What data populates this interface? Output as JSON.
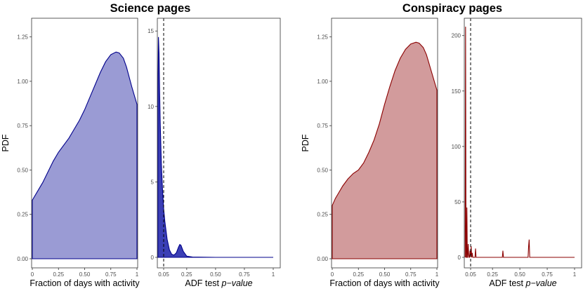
{
  "figure": {
    "left_title": "Science pages",
    "right_title": "Conspiracy pages"
  },
  "chart_data": [
    {
      "id": "sci-activity",
      "type": "area",
      "group": "Science pages",
      "xlabel": "Fraction of days with activity",
      "ylabel": "PDF",
      "xlim": [
        0,
        1
      ],
      "ylim": [
        0,
        1.3
      ],
      "xticks": [
        0,
        0.25,
        0.5,
        0.75,
        1
      ],
      "xticklabels": [
        "0",
        "0.25",
        "0.50",
        "0.75",
        "1"
      ],
      "yticks": [
        0,
        0.25,
        0.5,
        0.75,
        1.0,
        1.25
      ],
      "yticklabels": [
        "0.00",
        "0.25",
        "0.50",
        "0.75",
        "1.00",
        "1.25"
      ],
      "fill": "#9a9bd4",
      "stroke": "#00008b",
      "x": [
        0,
        0.05,
        0.1,
        0.15,
        0.2,
        0.25,
        0.3,
        0.35,
        0.4,
        0.45,
        0.5,
        0.55,
        0.6,
        0.65,
        0.7,
        0.75,
        0.8,
        0.83,
        0.87,
        0.9,
        0.95,
        1
      ],
      "y": [
        0.33,
        0.38,
        0.43,
        0.49,
        0.55,
        0.6,
        0.64,
        0.68,
        0.73,
        0.78,
        0.84,
        0.91,
        0.98,
        1.05,
        1.11,
        1.15,
        1.165,
        1.16,
        1.13,
        1.08,
        0.97,
        0.87
      ]
    },
    {
      "id": "sci-adf",
      "type": "area",
      "group": "Science pages",
      "xlabel": "ADF test",
      "xlabel_italic": "p−value",
      "xlim": [
        0.05,
        1
      ],
      "ylim": [
        0,
        15.8
      ],
      "xticks": [
        0.05,
        0.25,
        0.5,
        0.75,
        1
      ],
      "xticklabels": [
        "0.05",
        "0.25",
        "0.50",
        "0.75",
        "1"
      ],
      "yticks": [
        0,
        5,
        10,
        15
      ],
      "yticklabels": [
        "0",
        "5",
        "10",
        "15"
      ],
      "vline": 0.05,
      "fill": "#3b3fb5",
      "stroke": "#00008b",
      "x": [
        0.0,
        0.005,
        0.01,
        0.015,
        0.02,
        0.03,
        0.04,
        0.05,
        0.06,
        0.08,
        0.1,
        0.12,
        0.14,
        0.16,
        0.17,
        0.18,
        0.19,
        0.2,
        0.22,
        0.25,
        0.3,
        0.5,
        0.75,
        1.0
      ],
      "y": [
        11,
        14.6,
        13.5,
        11,
        9,
        6.2,
        4.5,
        3.2,
        2.4,
        1.2,
        0.5,
        0.2,
        0.15,
        0.3,
        0.5,
        0.7,
        0.85,
        0.8,
        0.4,
        0.08,
        0.02,
        0,
        0,
        0
      ]
    },
    {
      "id": "con-activity",
      "type": "area",
      "group": "Conspiracy pages",
      "xlabel": "Fraction of days with activity",
      "ylabel": "PDF",
      "xlim": [
        0,
        1
      ],
      "ylim": [
        0,
        1.3
      ],
      "xticks": [
        0,
        0.25,
        0.5,
        0.75,
        1
      ],
      "xticklabels": [
        "0",
        "0.25",
        "0.50",
        "0.75",
        "1"
      ],
      "yticks": [
        0,
        0.25,
        0.5,
        0.75,
        1.0,
        1.25
      ],
      "yticklabels": [
        "0.00",
        "0.25",
        "0.50",
        "0.75",
        "1.00",
        "1.25"
      ],
      "fill": "#d29b9c",
      "stroke": "#8b0000",
      "x": [
        0,
        0.03,
        0.06,
        0.1,
        0.15,
        0.2,
        0.25,
        0.3,
        0.35,
        0.4,
        0.45,
        0.5,
        0.55,
        0.6,
        0.65,
        0.7,
        0.75,
        0.8,
        0.83,
        0.87,
        0.9,
        0.95,
        1
      ],
      "y": [
        0.3,
        0.34,
        0.37,
        0.41,
        0.45,
        0.48,
        0.5,
        0.54,
        0.6,
        0.67,
        0.76,
        0.87,
        0.97,
        1.06,
        1.13,
        1.18,
        1.21,
        1.22,
        1.215,
        1.19,
        1.15,
        1.05,
        0.95
      ]
    },
    {
      "id": "con-adf",
      "type": "line",
      "group": "Conspiracy pages",
      "xlabel": "ADF test",
      "xlabel_italic": "p−value",
      "xlim": [
        0.05,
        1
      ],
      "ylim": [
        0,
        215
      ],
      "xticks": [
        0.05,
        0.25,
        0.5,
        0.75,
        1
      ],
      "xticklabels": [
        "0.05",
        "0.25",
        "0.50",
        "0.75",
        "1"
      ],
      "yticks": [
        0,
        50,
        100,
        150,
        200
      ],
      "yticklabels": [
        "0",
        "50",
        "100",
        "150",
        "200"
      ],
      "vline": 0.05,
      "fill": "#8b0000",
      "stroke": "#8b0000",
      "x": [
        0.0,
        0.004,
        0.008,
        0.012,
        0.016,
        0.02,
        0.024,
        0.028,
        0.032,
        0.036,
        0.04,
        0.045,
        0.05,
        0.055,
        0.06,
        0.065,
        0.07,
        0.09,
        0.095,
        0.1,
        0.105,
        0.11,
        0.34,
        0.345,
        0.35,
        0.355,
        0.36,
        0.575,
        0.58,
        0.585,
        0.59,
        0.595,
        0.8,
        1.0
      ],
      "y": [
        0,
        208,
        0,
        0,
        45,
        0,
        0,
        12,
        3,
        0,
        0,
        6,
        0,
        10,
        0,
        4,
        0,
        0,
        8,
        0,
        0,
        0,
        0,
        6,
        0,
        0,
        0,
        0,
        10,
        16,
        0,
        0,
        0,
        0
      ]
    }
  ]
}
